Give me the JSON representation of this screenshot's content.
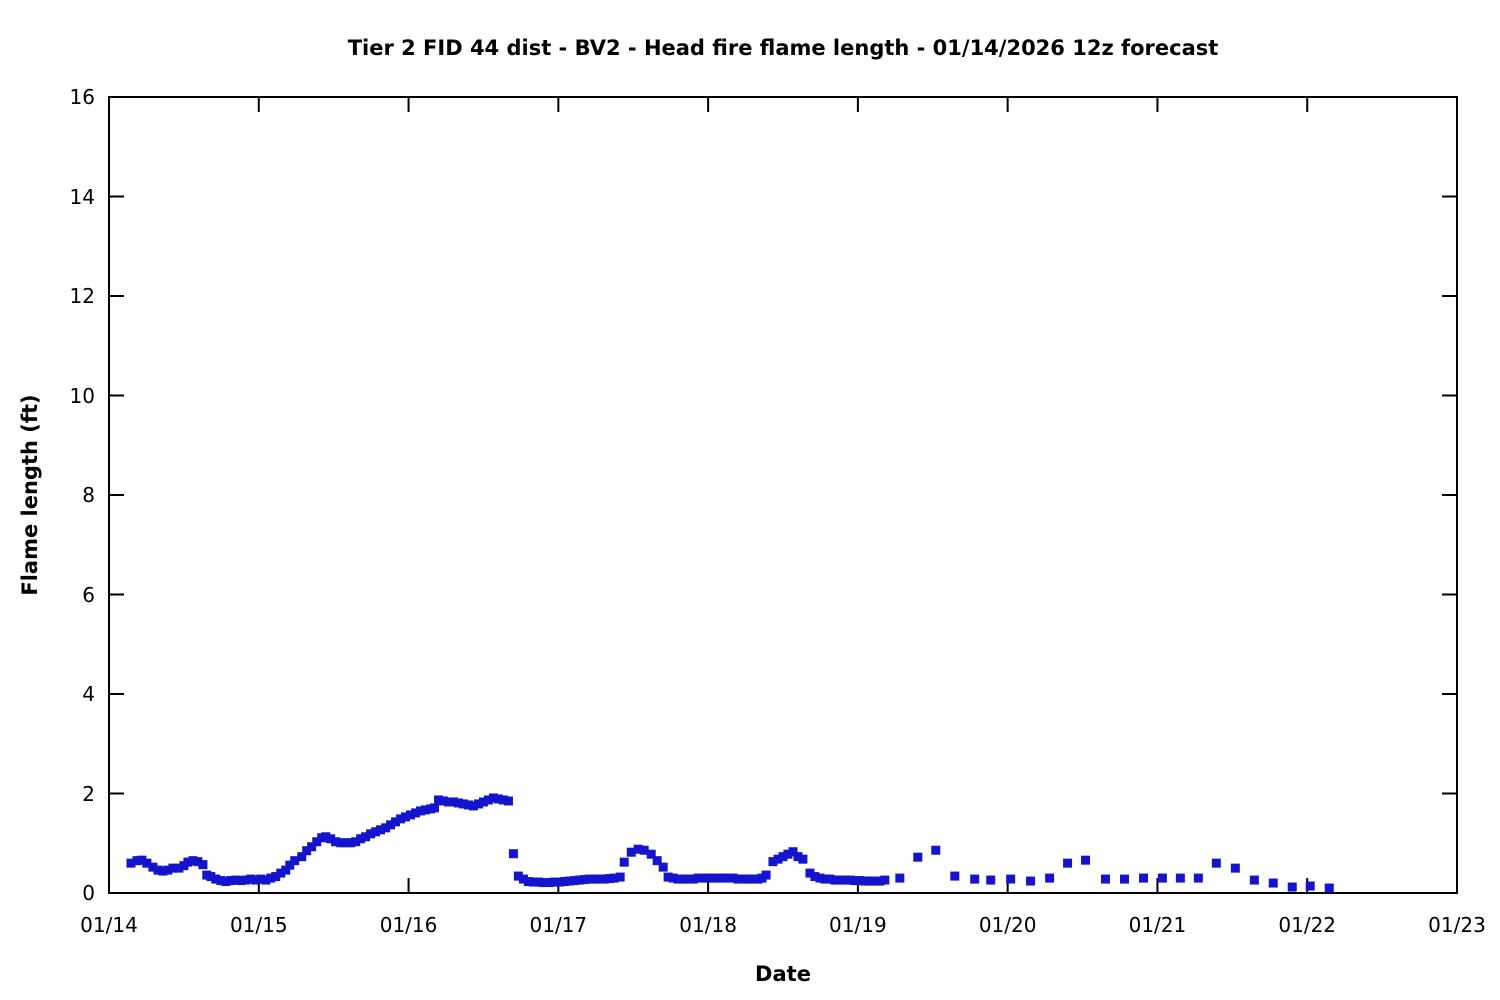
{
  "chart_data": {
    "type": "scatter",
    "title": "Tier 2 FID 44 dist - BV2 - Head fire flame length - 01/14/2026 12z forecast",
    "xlabel": "Date",
    "ylabel": "Flame length (ft)",
    "x_tick_labels": [
      "01/14",
      "01/15",
      "01/16",
      "01/17",
      "01/18",
      "01/19",
      "01/20",
      "01/21",
      "01/22",
      "01/23"
    ],
    "x_tick_days": [
      0,
      1,
      2,
      3,
      4,
      5,
      6,
      7,
      8,
      9
    ],
    "y_ticks": [
      0,
      2,
      4,
      6,
      8,
      10,
      12,
      14,
      16
    ],
    "xlim_days": [
      0,
      9
    ],
    "ylim": [
      0,
      16
    ],
    "grid": false,
    "legend": "none",
    "marker": "filled-square",
    "marker_color": "#1414cd",
    "marker_size_px": 9,
    "series": [
      {
        "name": "Head fire flame length (ft)",
        "points": [
          [
            0.147,
            0.6
          ],
          [
            0.187,
            0.65
          ],
          [
            0.22,
            0.66
          ],
          [
            0.253,
            0.6
          ],
          [
            0.293,
            0.52
          ],
          [
            0.327,
            0.46
          ],
          [
            0.36,
            0.44
          ],
          [
            0.393,
            0.46
          ],
          [
            0.427,
            0.5
          ],
          [
            0.467,
            0.5
          ],
          [
            0.5,
            0.55
          ],
          [
            0.527,
            0.62
          ],
          [
            0.56,
            0.65
          ],
          [
            0.593,
            0.63
          ],
          [
            0.627,
            0.57
          ],
          [
            0.653,
            0.36
          ],
          [
            0.68,
            0.33
          ],
          [
            0.713,
            0.28
          ],
          [
            0.747,
            0.25
          ],
          [
            0.78,
            0.23
          ],
          [
            0.813,
            0.25
          ],
          [
            0.847,
            0.26
          ],
          [
            0.88,
            0.25
          ],
          [
            0.913,
            0.26
          ],
          [
            0.947,
            0.28
          ],
          [
            0.98,
            0.26
          ],
          [
            1.013,
            0.28
          ],
          [
            1.047,
            0.26
          ],
          [
            1.08,
            0.3
          ],
          [
            1.113,
            0.33
          ],
          [
            1.147,
            0.4
          ],
          [
            1.18,
            0.46
          ],
          [
            1.207,
            0.56
          ],
          [
            1.24,
            0.65
          ],
          [
            1.287,
            0.73
          ],
          [
            1.32,
            0.85
          ],
          [
            1.353,
            0.93
          ],
          [
            1.387,
            1.03
          ],
          [
            1.42,
            1.11
          ],
          [
            1.447,
            1.13
          ],
          [
            1.48,
            1.09
          ],
          [
            1.513,
            1.03
          ],
          [
            1.547,
            1.01
          ],
          [
            1.58,
            1.01
          ],
          [
            1.613,
            1.01
          ],
          [
            1.647,
            1.03
          ],
          [
            1.68,
            1.09
          ],
          [
            1.713,
            1.13
          ],
          [
            1.747,
            1.19
          ],
          [
            1.78,
            1.23
          ],
          [
            1.813,
            1.27
          ],
          [
            1.847,
            1.31
          ],
          [
            1.88,
            1.37
          ],
          [
            1.913,
            1.43
          ],
          [
            1.947,
            1.49
          ],
          [
            1.98,
            1.53
          ],
          [
            2.013,
            1.57
          ],
          [
            2.047,
            1.61
          ],
          [
            2.08,
            1.65
          ],
          [
            2.113,
            1.67
          ],
          [
            2.147,
            1.69
          ],
          [
            2.173,
            1.71
          ],
          [
            2.2,
            1.87
          ],
          [
            2.233,
            1.85
          ],
          [
            2.267,
            1.83
          ],
          [
            2.3,
            1.83
          ],
          [
            2.333,
            1.81
          ],
          [
            2.367,
            1.79
          ],
          [
            2.4,
            1.77
          ],
          [
            2.433,
            1.75
          ],
          [
            2.467,
            1.79
          ],
          [
            2.5,
            1.83
          ],
          [
            2.533,
            1.87
          ],
          [
            2.567,
            1.91
          ],
          [
            2.6,
            1.89
          ],
          [
            2.633,
            1.87
          ],
          [
            2.667,
            1.85
          ],
          [
            2.7,
            0.79
          ],
          [
            2.733,
            0.34
          ],
          [
            2.767,
            0.28
          ],
          [
            2.8,
            0.23
          ],
          [
            2.833,
            0.22
          ],
          [
            2.867,
            0.22
          ],
          [
            2.9,
            0.21
          ],
          [
            2.94,
            0.21
          ],
          [
            2.973,
            0.22
          ],
          [
            3.007,
            0.22
          ],
          [
            3.04,
            0.23
          ],
          [
            3.073,
            0.24
          ],
          [
            3.107,
            0.25
          ],
          [
            3.14,
            0.26
          ],
          [
            3.173,
            0.27
          ],
          [
            3.207,
            0.28
          ],
          [
            3.24,
            0.28
          ],
          [
            3.273,
            0.28
          ],
          [
            3.307,
            0.28
          ],
          [
            3.34,
            0.29
          ],
          [
            3.373,
            0.3
          ],
          [
            3.413,
            0.32
          ],
          [
            3.44,
            0.62
          ],
          [
            3.487,
            0.82
          ],
          [
            3.533,
            0.88
          ],
          [
            3.573,
            0.86
          ],
          [
            3.62,
            0.78
          ],
          [
            3.66,
            0.65
          ],
          [
            3.7,
            0.52
          ],
          [
            3.733,
            0.32
          ],
          [
            3.767,
            0.3
          ],
          [
            3.8,
            0.28
          ],
          [
            3.833,
            0.28
          ],
          [
            3.867,
            0.28
          ],
          [
            3.9,
            0.28
          ],
          [
            3.933,
            0.3
          ],
          [
            3.967,
            0.3
          ],
          [
            4.0,
            0.3
          ],
          [
            4.033,
            0.3
          ],
          [
            4.067,
            0.3
          ],
          [
            4.1,
            0.3
          ],
          [
            4.133,
            0.3
          ],
          [
            4.167,
            0.3
          ],
          [
            4.2,
            0.28
          ],
          [
            4.233,
            0.28
          ],
          [
            4.267,
            0.28
          ],
          [
            4.3,
            0.28
          ],
          [
            4.333,
            0.28
          ],
          [
            4.36,
            0.3
          ],
          [
            4.387,
            0.36
          ],
          [
            4.433,
            0.63
          ],
          [
            4.467,
            0.68
          ],
          [
            4.5,
            0.73
          ],
          [
            4.533,
            0.78
          ],
          [
            4.567,
            0.83
          ],
          [
            4.6,
            0.73
          ],
          [
            4.633,
            0.68
          ],
          [
            4.68,
            0.4
          ],
          [
            4.713,
            0.33
          ],
          [
            4.747,
            0.3
          ],
          [
            4.78,
            0.28
          ],
          [
            4.813,
            0.28
          ],
          [
            4.847,
            0.26
          ],
          [
            4.88,
            0.26
          ],
          [
            4.913,
            0.26
          ],
          [
            4.947,
            0.26
          ],
          [
            4.98,
            0.25
          ],
          [
            5.013,
            0.25
          ],
          [
            5.047,
            0.24
          ],
          [
            5.08,
            0.24
          ],
          [
            5.113,
            0.24
          ],
          [
            5.147,
            0.24
          ],
          [
            5.18,
            0.26
          ],
          [
            5.28,
            0.3
          ],
          [
            5.4,
            0.72
          ],
          [
            5.52,
            0.86
          ],
          [
            5.647,
            0.34
          ],
          [
            5.78,
            0.28
          ],
          [
            5.887,
            0.26
          ],
          [
            6.02,
            0.28
          ],
          [
            6.153,
            0.24
          ],
          [
            6.28,
            0.3
          ],
          [
            6.4,
            0.6
          ],
          [
            6.52,
            0.66
          ],
          [
            6.653,
            0.28
          ],
          [
            6.78,
            0.28
          ],
          [
            6.907,
            0.3
          ],
          [
            7.033,
            0.3
          ],
          [
            7.153,
            0.3
          ],
          [
            7.273,
            0.3
          ],
          [
            7.393,
            0.6
          ],
          [
            7.52,
            0.5
          ],
          [
            7.647,
            0.26
          ],
          [
            7.773,
            0.2
          ],
          [
            7.9,
            0.12
          ],
          [
            8.02,
            0.14
          ],
          [
            8.147,
            0.1
          ]
        ]
      }
    ],
    "axis_color": "#000000",
    "background_color": "#ffffff"
  }
}
